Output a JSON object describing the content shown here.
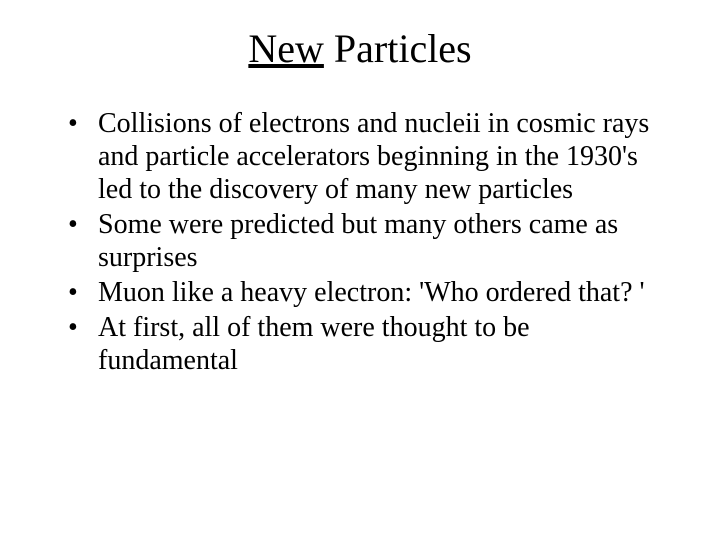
{
  "slide": {
    "title_underlined": "New",
    "title_rest": " Particles",
    "bullets": [
      "Collisions of electrons and nucleii in cosmic rays and particle accelerators beginning in the 1930's led to the discovery of many new particles",
      "Some were predicted but many others came as surprises",
      "Muon like a heavy electron: 'Who ordered that? '",
      "At first, all of them were thought to be fundamental"
    ]
  },
  "colors": {
    "background": "#ffffff",
    "text": "#000000"
  },
  "typography": {
    "title_fontsize": 40,
    "body_fontsize": 28,
    "font_family": "Times New Roman"
  }
}
